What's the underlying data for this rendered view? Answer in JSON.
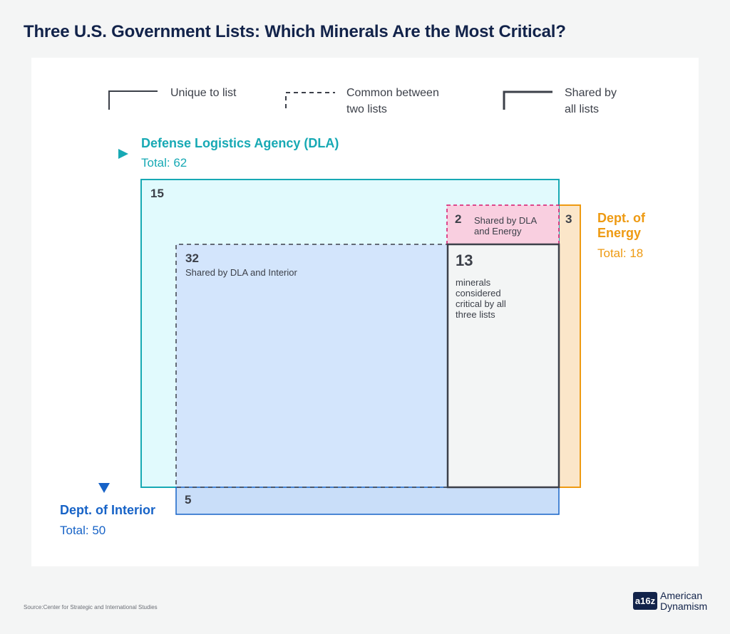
{
  "title": "Three U.S. Government Lists: Which Minerals Are the Most Critical?",
  "legend": {
    "unique": "Unique to list",
    "common_line1": "Common between",
    "common_line2": "two lists",
    "shared_line1": "Shared by",
    "shared_line2": "all lists"
  },
  "lists": {
    "dla": {
      "name": "Defense Logistics Agency (DLA)",
      "total": "Total: 62",
      "color": "#17a9b4"
    },
    "energy": {
      "name_line1": "Dept. of",
      "name_line2": "Energy",
      "total": "Total: 18",
      "color": "#ee9a12"
    },
    "interior": {
      "name": "Dept. of Interior",
      "total": "Total: 50",
      "color": "#1763c7"
    }
  },
  "regions": {
    "dla_only": {
      "count": "15"
    },
    "dla_energy": {
      "count": "2",
      "label_line1": "Shared by DLA",
      "label_line2": "and Energy"
    },
    "energy_only": {
      "count": "3"
    },
    "dla_interior": {
      "count": "32",
      "label": "Shared by DLA and Interior"
    },
    "all_three": {
      "count": "13",
      "label_line1": "minerals",
      "label_line2": "considered",
      "label_line3": "critical by all",
      "label_line4": "three lists"
    },
    "interior_only": {
      "count": "5"
    }
  },
  "source": "Source:Center for Strategic and International Studies",
  "logo": {
    "mark": "a16z",
    "line1": "American",
    "line2": "Dynamism"
  }
}
